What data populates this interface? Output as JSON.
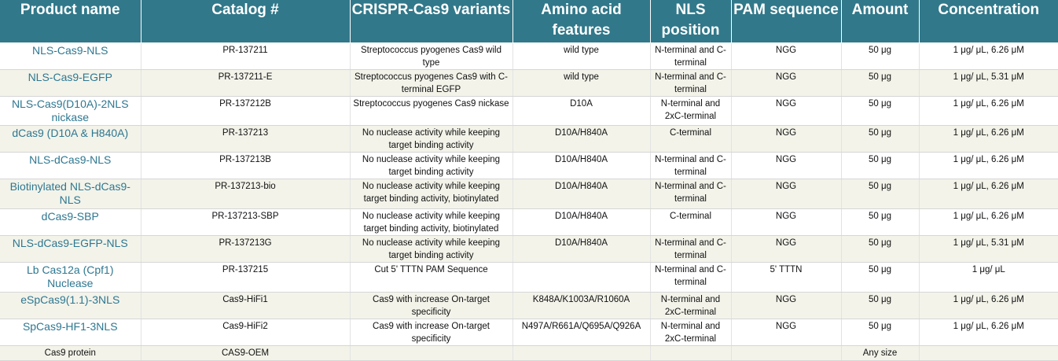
{
  "headers": [
    "Product name",
    "Catalog #",
    "CRISPR-Cas9 variants",
    "Amino acid features",
    "NLS position",
    "PAM sequence",
    "Amount",
    "Concentration"
  ],
  "rows": [
    {
      "name": "NLS-Cas9-NLS",
      "catalog": "PR-137211",
      "variant": "Streptococcus pyogenes Cas9 wild type",
      "aa": "wild type",
      "nls": "N-terminal and C-terminal",
      "pam": "NGG",
      "amount": "50 μg",
      "conc": "1 μg/ μL, 6.26 μM"
    },
    {
      "name": "NLS-Cas9-EGFP",
      "catalog": "PR-137211-E",
      "variant": "Streptococcus pyogenes Cas9 with C-terminal EGFP",
      "aa": "wild type",
      "nls": "N-terminal and C-terminal",
      "pam": "NGG",
      "amount": "50 μg",
      "conc": "1 μg/ μL, 5.31 μM"
    },
    {
      "name": "NLS-Cas9(D10A)-2NLS nickase",
      "catalog": "PR-137212B",
      "variant": "Streptococcus pyogenes Cas9 nickase",
      "aa": "D10A",
      "nls": "N-terminal and 2xC-terminal",
      "pam": "NGG",
      "amount": "50 μg",
      "conc": "1 μg/ μL, 6.26 μM"
    },
    {
      "name": "dCas9 (D10A & H840A)",
      "catalog": "PR-137213",
      "variant": "No nuclease activity while keeping target binding activity",
      "aa": "D10A/H840A",
      "nls": "C-terminal",
      "pam": "NGG",
      "amount": "50 μg",
      "conc": "1 μg/ μL, 6.26 μM"
    },
    {
      "name": "NLS-dCas9-NLS",
      "catalog": "PR-137213B",
      "variant": "No nuclease activity while keeping target binding activity",
      "aa": "D10A/H840A",
      "nls": "N-terminal and C-terminal",
      "pam": "NGG",
      "amount": "50 μg",
      "conc": "1 μg/ μL, 6.26 μM"
    },
    {
      "name": "Biotinylated NLS-dCas9-NLS",
      "catalog": "PR-137213-bio",
      "variant": "No nuclease activity while keeping target binding activity, biotinylated",
      "aa": "D10A/H840A",
      "nls": "N-terminal and C-terminal",
      "pam": "NGG",
      "amount": "50 μg",
      "conc": "1 μg/ μL, 6.26 μM"
    },
    {
      "name": "dCas9-SBP",
      "catalog": "PR-137213-SBP",
      "variant": "No nuclease activity while keeping target binding activity, biotinylated",
      "aa": "D10A/H840A",
      "nls": "C-terminal",
      "pam": "NGG",
      "amount": "50 μg",
      "conc": "1 μg/ μL, 6.26 μM"
    },
    {
      "name": "NLS-dCas9-EGFP-NLS",
      "catalog": "PR-137213G",
      "variant": "No nuclease activity while keeping target binding activity",
      "aa": "D10A/H840A",
      "nls": "N-terminal and C-terminal",
      "pam": "NGG",
      "amount": "50 μg",
      "conc": "1 μg/ μL, 5.31 μM"
    },
    {
      "name": "Lb Cas12a (Cpf1) Nuclease",
      "catalog": "PR-137215",
      "variant": "Cut 5' TTTN PAM Sequence",
      "aa": "",
      "nls": "N-terminal and C-terminal",
      "pam": "5' TTTN",
      "amount": "50 μg",
      "conc": "1 μg/ μL"
    },
    {
      "name": "eSpCas9(1.1)-3NLS",
      "catalog": "Cas9-HiFi1",
      "variant": "Cas9 with increase On-target specificity",
      "aa": "K848A/K1003A/R1060A",
      "nls": "N-terminal and 2xC-terminal",
      "pam": "NGG",
      "amount": "50 μg",
      "conc": "1 μg/ μL, 6.26 μM"
    },
    {
      "name": "SpCas9-HF1-3NLS",
      "catalog": "Cas9-HiFi2",
      "variant": "Cas9 with increase On-target specificity",
      "aa": "N497A/R661A/Q695A/Q926A",
      "nls": "N-terminal and 2xC-terminal",
      "pam": "NGG",
      "amount": "50 μg",
      "conc": "1 μg/ μL, 6.26 μM"
    },
    {
      "name": "Cas9 protein",
      "catalog": "CAS9-OEM",
      "variant": "",
      "aa": "",
      "nls": "",
      "pam": "",
      "amount": "Any size",
      "conc": ""
    }
  ]
}
